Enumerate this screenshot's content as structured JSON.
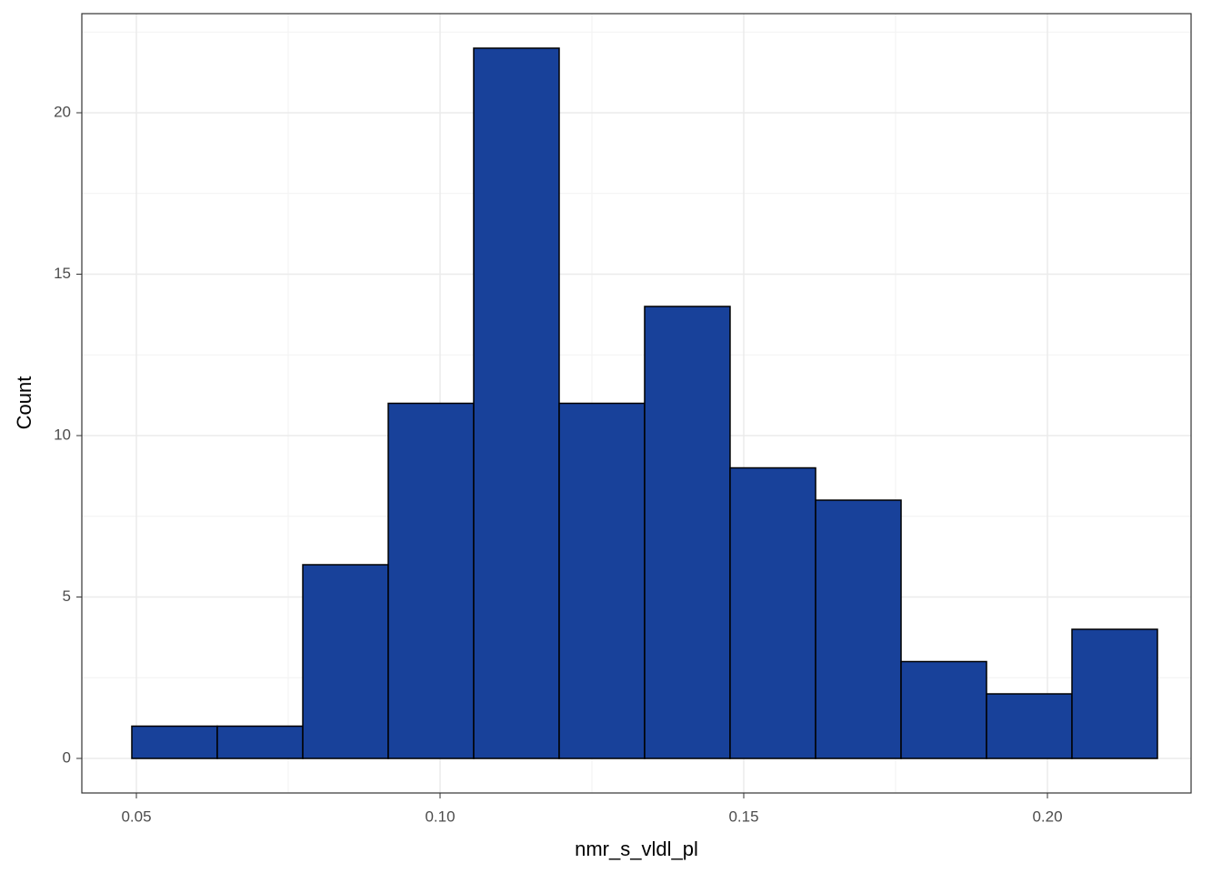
{
  "chart_data": {
    "type": "histogram",
    "x_label": "nmr_s_vldl_pl",
    "y_label": "Count",
    "bins": [
      0.04925,
      0.06332,
      0.0774,
      0.09147,
      0.10554,
      0.11961,
      0.13368,
      0.14775,
      0.16183,
      0.1759,
      0.18997,
      0.20404,
      0.21811
    ],
    "values": [
      1,
      1,
      6,
      11,
      22,
      11,
      14,
      9,
      8,
      3,
      2,
      4
    ],
    "color": "#18419a",
    "edge_color": "#000000",
    "xlim": [
      0.04102,
      0.22365
    ],
    "xticks": [
      0.05,
      {
        "value": 0.1,
        "label": "0.10"
      },
      0.15,
      {
        "value": 0.2,
        "label": "0.20"
      }
    ],
    "x_minor_grid": [
      0.075,
      0.125,
      0.175
    ],
    "ylim": [
      -1.07,
      23.07
    ],
    "yticks": [
      0,
      5,
      10,
      15,
      20
    ],
    "y_minor_grid": [
      2.5,
      7.5,
      12.5,
      17.5,
      22.5
    ],
    "grid": true
  }
}
